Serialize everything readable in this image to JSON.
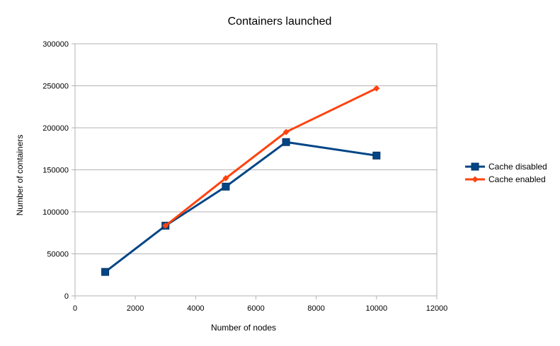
{
  "chart_data": {
    "type": "line",
    "title": "Containers launched",
    "xlabel": "Number of nodes",
    "ylabel": "Number of containers",
    "xlim": [
      0,
      12000
    ],
    "ylim": [
      0,
      300000
    ],
    "x_ticks": [
      "0",
      "2000",
      "4000",
      "6000",
      "8000",
      "10000",
      "12000"
    ],
    "y_ticks": [
      "0",
      "50000",
      "100000",
      "150000",
      "200000",
      "250000",
      "300000"
    ],
    "grid": "horizontal",
    "legend_position": "right",
    "series": [
      {
        "name": "Cache disabled",
        "color": "#004586",
        "marker": "square",
        "x": [
          1000,
          3000,
          5000,
          7000,
          10000
        ],
        "y": [
          28500,
          83500,
          130000,
          183000,
          167000
        ]
      },
      {
        "name": "Cache enabled",
        "color": "#ff420e",
        "marker": "diamond",
        "x": [
          3000,
          5000,
          7000,
          10000
        ],
        "y": [
          83500,
          140000,
          195000,
          247000
        ]
      }
    ]
  }
}
